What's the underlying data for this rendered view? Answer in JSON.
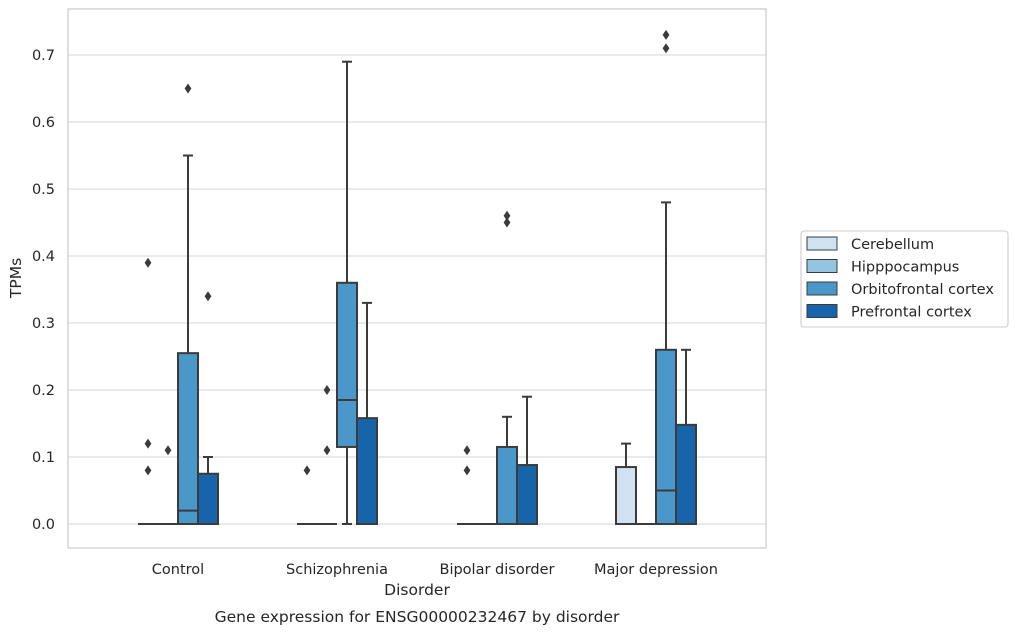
{
  "chart_data": {
    "type": "box",
    "xlabel": "Disorder",
    "ylabel": "TPMs",
    "caption": "Gene expression for ENSG00000232467 by disorder",
    "ylim": [
      -0.035,
      0.77
    ],
    "yticks": [
      "0.0",
      "0.1",
      "0.2",
      "0.3",
      "0.4",
      "0.5",
      "0.6",
      "0.7"
    ],
    "categories": [
      "Control",
      "Schizophrenia",
      "Bipolar disorder",
      "Major depression"
    ],
    "grid": "horizontal",
    "legend_position": "right",
    "series": [
      {
        "name": "Cerebellum",
        "color": "#d0e1f2",
        "boxes": [
          {
            "q1": 0,
            "median": 0,
            "q3": 0,
            "whisker_low": 0,
            "whisker_high": 0,
            "outliers": [
              0.08,
              0.12,
              0.39
            ]
          },
          {
            "q1": 0,
            "median": 0,
            "q3": 0,
            "whisker_low": 0,
            "whisker_high": 0,
            "outliers": [
              0.08
            ]
          },
          {
            "q1": 0,
            "median": 0,
            "q3": 0,
            "whisker_low": 0,
            "whisker_high": 0,
            "outliers": [
              0.08,
              0.11
            ]
          },
          {
            "q1": 0,
            "median": 0,
            "q3": 0.085,
            "whisker_low": 0,
            "whisker_high": 0.12,
            "outliers": []
          }
        ]
      },
      {
        "name": "Hipppocampus",
        "color": "#94c4df",
        "boxes": [
          {
            "q1": 0,
            "median": 0,
            "q3": 0,
            "whisker_low": 0,
            "whisker_high": 0,
            "outliers": [
              0.11
            ]
          },
          {
            "q1": 0,
            "median": 0,
            "q3": 0,
            "whisker_low": 0,
            "whisker_high": 0,
            "outliers": [
              0.11,
              0.2
            ]
          },
          {
            "q1": 0,
            "median": 0,
            "q3": 0,
            "whisker_low": 0,
            "whisker_high": 0,
            "outliers": []
          },
          {
            "q1": 0,
            "median": 0,
            "q3": 0,
            "whisker_low": 0,
            "whisker_high": 0,
            "outliers": []
          }
        ]
      },
      {
        "name": "Orbitofrontal cortex",
        "color": "#4a98c9",
        "boxes": [
          {
            "q1": 0,
            "median": 0.02,
            "q3": 0.255,
            "whisker_low": 0,
            "whisker_high": 0.55,
            "outliers": [
              0.65
            ]
          },
          {
            "q1": 0.115,
            "median": 0.185,
            "q3": 0.36,
            "whisker_low": 0,
            "whisker_high": 0.69,
            "outliers": []
          },
          {
            "q1": 0,
            "median": 0,
            "q3": 0.115,
            "whisker_low": 0,
            "whisker_high": 0.16,
            "outliers": [
              0.45,
              0.46
            ]
          },
          {
            "q1": 0,
            "median": 0.05,
            "q3": 0.26,
            "whisker_low": 0,
            "whisker_high": 0.48,
            "outliers": [
              0.71,
              0.73
            ]
          }
        ]
      },
      {
        "name": "Prefrontal cortex",
        "color": "#1764ab",
        "boxes": [
          {
            "q1": 0,
            "median": 0,
            "q3": 0.075,
            "whisker_low": 0,
            "whisker_high": 0.1,
            "outliers": [
              0.34
            ]
          },
          {
            "q1": 0,
            "median": 0,
            "q3": 0.158,
            "whisker_low": 0,
            "whisker_high": 0.33,
            "outliers": []
          },
          {
            "q1": 0,
            "median": 0,
            "q3": 0.088,
            "whisker_low": 0,
            "whisker_high": 0.19,
            "outliers": []
          },
          {
            "q1": 0,
            "median": 0,
            "q3": 0.148,
            "whisker_low": 0,
            "whisker_high": 0.26,
            "outliers": []
          }
        ]
      }
    ]
  }
}
